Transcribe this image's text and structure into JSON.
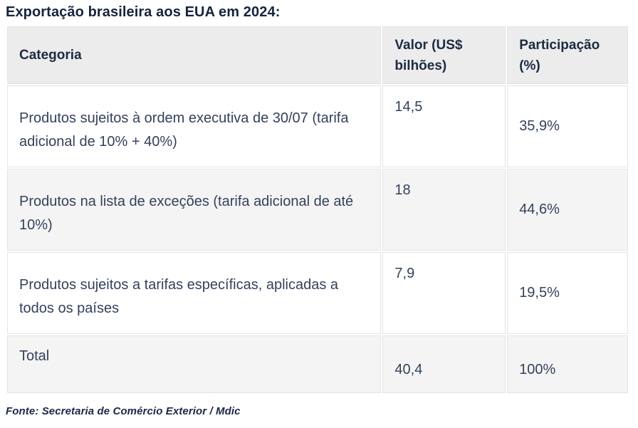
{
  "page": {
    "title": "Exportação brasileira aos EUA em 2024:",
    "source_note": "Fonte: Secretaria de Comércio Exterior / Mdic"
  },
  "table": {
    "columns": {
      "categoria": "Categoria",
      "valor": "Valor (US$ bilhões)",
      "participacao": "Participação (%)"
    },
    "rows": [
      {
        "categoria": "Produtos sujeitos à ordem executiva de 30/07 (tarifa adicional de 10% + 40%)",
        "valor": "14,5",
        "participacao": "35,9%"
      },
      {
        "categoria": "Produtos na lista de exceções (tarifa adicional de até 10%)",
        "valor": "18",
        "participacao": "44,6%"
      },
      {
        "categoria": "Produtos sujeitos a tarifas específicas, aplicadas a todos os países",
        "valor": "7,9",
        "participacao": "19,5%"
      },
      {
        "categoria": "Total",
        "valor": "40,4",
        "participacao": "100%"
      }
    ]
  },
  "colors": {
    "title_text": "#16243c",
    "header_text": "#1c2b42",
    "body_text": "#33425c",
    "header_bg": "#ececec",
    "alt_row_bg": "#f4f4f4",
    "cell_border": "#e4e4e4"
  }
}
